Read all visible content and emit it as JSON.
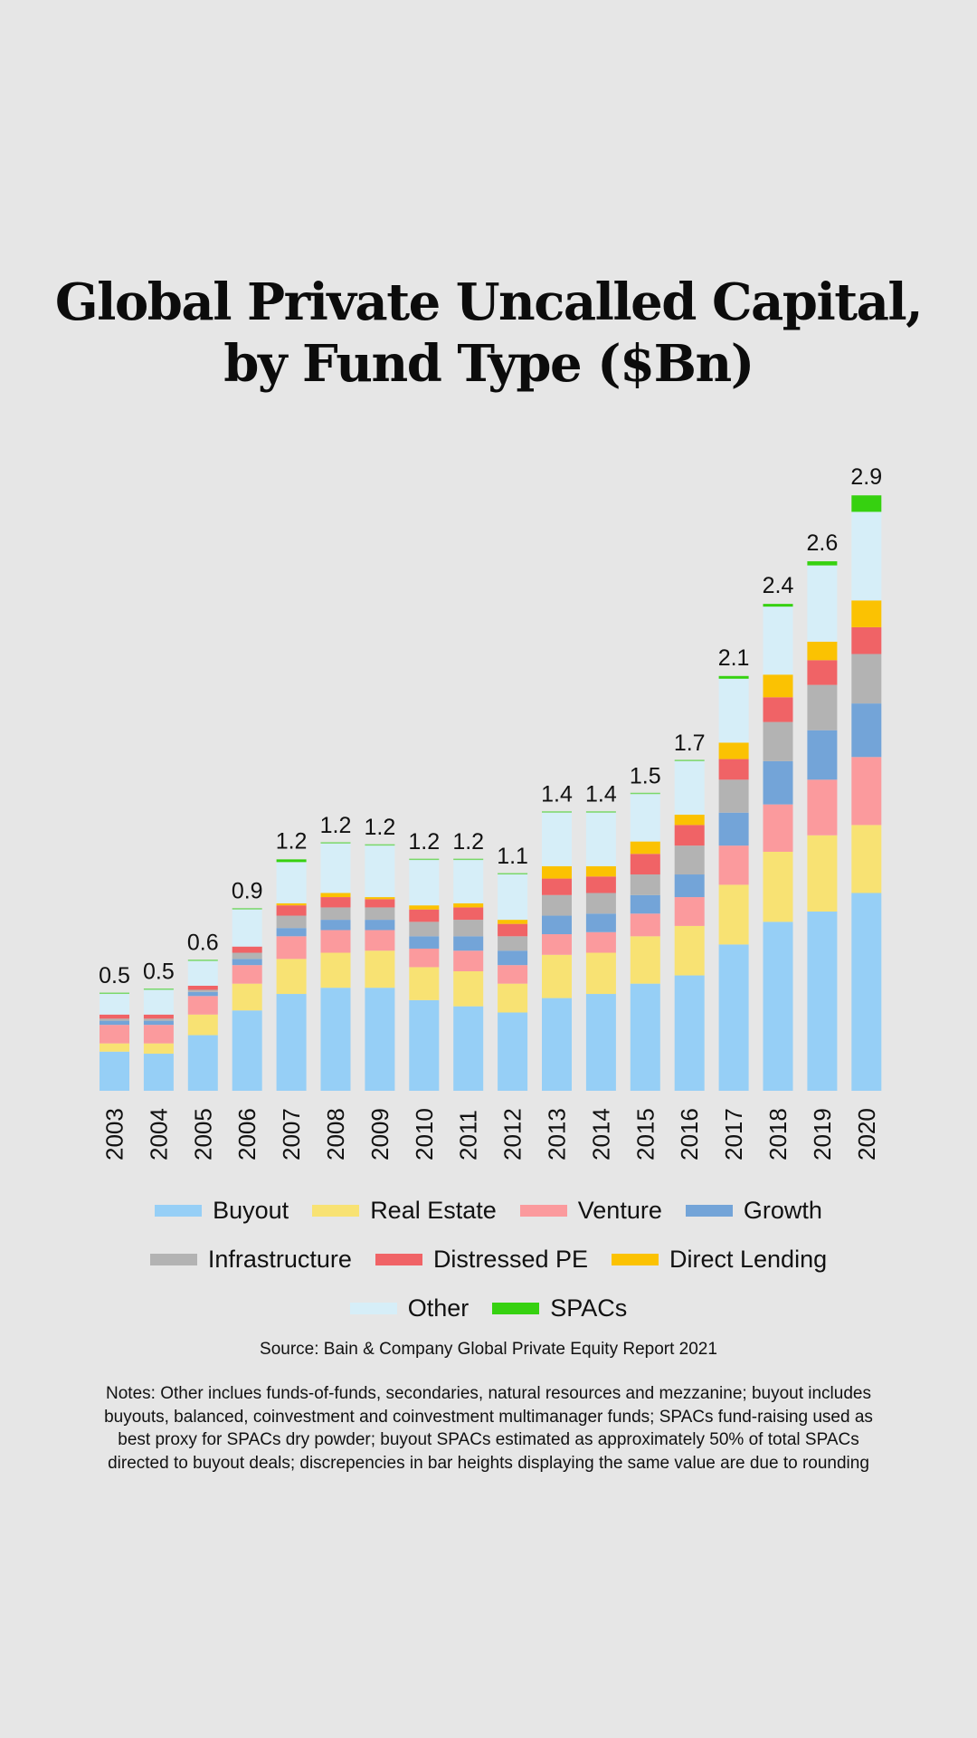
{
  "title_line1": "Global Private Uncalled Capital,",
  "title_line2": "by Fund Type ($Bn)",
  "source": "Source: Bain & Company Global Private Equity Report 2021",
  "notes": "Notes: Other inclues funds-of-funds, secondaries, natural resources and mezzanine; buyout includes buyouts, balanced, coinvestment and coinvestment multimanager funds; SPACs fund-raising used as best proxy for SPACs dry powder; buyout SPACs estimated as approximately 50% of total SPACs directed to buyout deals; discrepencies in bar heights displaying the same value are due to rounding",
  "chart_data": {
    "type": "bar",
    "stacked": true,
    "title": "Global Private Uncalled Capital, by Fund Type ($Bn)",
    "xlabel": "",
    "ylabel": "",
    "ylim": [
      0,
      3.0
    ],
    "grid": false,
    "legend_position": "bottom",
    "categories": [
      "2003",
      "2004",
      "2005",
      "2006",
      "2007",
      "2008",
      "2009",
      "2010",
      "2011",
      "2012",
      "2013",
      "2014",
      "2015",
      "2016",
      "2017",
      "2018",
      "2019",
      "2020"
    ],
    "totals_labels": [
      "0.5",
      "0.5",
      "0.6",
      "0.9",
      "1.2",
      "1.2",
      "1.2",
      "1.2",
      "1.2",
      "1.1",
      "1.4",
      "1.4",
      "1.5",
      "1.7",
      "2.1",
      "2.4",
      "2.6",
      "2.9"
    ],
    "series": [
      {
        "name": "Buyout",
        "color": "#96cff6",
        "values": [
          0.19,
          0.18,
          0.27,
          0.39,
          0.47,
          0.5,
          0.5,
          0.44,
          0.41,
          0.38,
          0.45,
          0.47,
          0.52,
          0.56,
          0.71,
          0.82,
          0.87,
          0.96
        ]
      },
      {
        "name": "Real Estate",
        "color": "#f8e273",
        "values": [
          0.04,
          0.05,
          0.1,
          0.13,
          0.17,
          0.17,
          0.18,
          0.16,
          0.17,
          0.14,
          0.21,
          0.2,
          0.23,
          0.24,
          0.29,
          0.34,
          0.37,
          0.33
        ]
      },
      {
        "name": "Venture",
        "color": "#fb9a9d",
        "values": [
          0.09,
          0.09,
          0.09,
          0.09,
          0.11,
          0.11,
          0.1,
          0.09,
          0.1,
          0.09,
          0.1,
          0.1,
          0.11,
          0.14,
          0.19,
          0.23,
          0.27,
          0.33
        ]
      },
      {
        "name": "Growth",
        "color": "#73a4d8",
        "values": [
          0.02,
          0.02,
          0.02,
          0.03,
          0.04,
          0.05,
          0.05,
          0.06,
          0.07,
          0.07,
          0.09,
          0.09,
          0.09,
          0.11,
          0.16,
          0.21,
          0.24,
          0.26
        ]
      },
      {
        "name": "Infrastructure",
        "color": "#b3b3b3",
        "values": [
          0.01,
          0.01,
          0.01,
          0.03,
          0.06,
          0.06,
          0.06,
          0.07,
          0.08,
          0.07,
          0.1,
          0.1,
          0.1,
          0.14,
          0.16,
          0.19,
          0.22,
          0.24
        ]
      },
      {
        "name": "Distressed PE",
        "color": "#f06366",
        "values": [
          0.02,
          0.02,
          0.02,
          0.03,
          0.05,
          0.05,
          0.04,
          0.06,
          0.06,
          0.06,
          0.08,
          0.08,
          0.1,
          0.1,
          0.1,
          0.12,
          0.12,
          0.13
        ]
      },
      {
        "name": "Direct Lending",
        "color": "#fbc202",
        "values": [
          0.0,
          0.0,
          0.0,
          0.0,
          0.01,
          0.02,
          0.01,
          0.02,
          0.02,
          0.02,
          0.06,
          0.05,
          0.06,
          0.05,
          0.08,
          0.11,
          0.09,
          0.13
        ]
      },
      {
        "name": "Other",
        "color": "#d6eef8",
        "values": [
          0.1,
          0.12,
          0.12,
          0.18,
          0.2,
          0.24,
          0.25,
          0.22,
          0.21,
          0.22,
          0.26,
          0.26,
          0.23,
          0.26,
          0.31,
          0.33,
          0.37,
          0.43
        ]
      },
      {
        "name": "SPACs",
        "color": "#36d110",
        "values": [
          0.0,
          0.0,
          0.0,
          0.0,
          0.01,
          0.0,
          0.0,
          0.0,
          0.0,
          0.0,
          0.0,
          0.0,
          0.0,
          0.0,
          0.01,
          0.01,
          0.02,
          0.08
        ]
      }
    ]
  }
}
